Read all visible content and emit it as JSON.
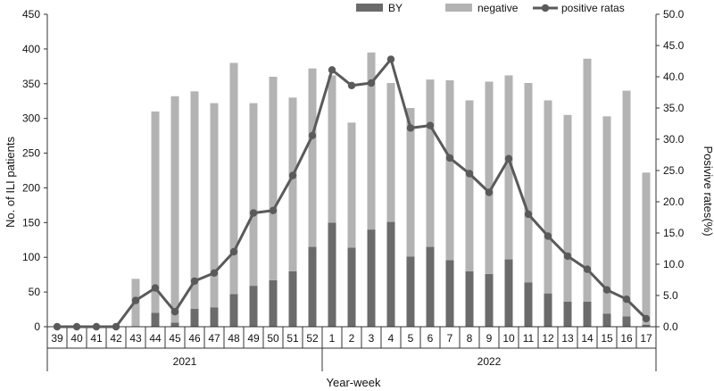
{
  "chart_data": {
    "type": "bar+line",
    "x_label": "Year-week",
    "y_left_label": "No. of ILI patients",
    "y_right_label": "Posivive rates(%)",
    "y_left_range": [
      0,
      450
    ],
    "y_left_ticks": [
      "0",
      "50",
      "100",
      "150",
      "200",
      "250",
      "300",
      "350",
      "400",
      "450"
    ],
    "y_right_range": [
      0,
      50
    ],
    "y_right_ticks": [
      "0.0",
      "5.0",
      "10.0",
      "15.0",
      "20.0",
      "25.0",
      "30.0",
      "35.0",
      "40.0",
      "45.0",
      "50.0"
    ],
    "weeks": [
      "39",
      "40",
      "41",
      "42",
      "43",
      "44",
      "45",
      "46",
      "47",
      "48",
      "49",
      "50",
      "51",
      "52",
      "1",
      "2",
      "3",
      "4",
      "5",
      "6",
      "7",
      "8",
      "9",
      "10",
      "11",
      "12",
      "13",
      "14",
      "15",
      "16",
      "17"
    ],
    "years": [
      {
        "label": "2021",
        "start": 0,
        "end": 13
      },
      {
        "label": "2022",
        "start": 14,
        "end": 30
      }
    ],
    "legend": [
      "BY",
      "negative",
      "positive ratas"
    ],
    "series": [
      {
        "name": "BY",
        "kind": "bar",
        "color": "#6b6b6b",
        "values": [
          0,
          0,
          0,
          0,
          0,
          20,
          6,
          26,
          28,
          47,
          59,
          67,
          80,
          115,
          150,
          114,
          140,
          151,
          101,
          115,
          96,
          80,
          76,
          97,
          64,
          48,
          36,
          36,
          19,
          15,
          3
        ]
      },
      {
        "name": "negative",
        "kind": "bar",
        "color": "#b3b3b3",
        "values": [
          0,
          0,
          0,
          0,
          69,
          290,
          326,
          313,
          294,
          333,
          263,
          293,
          250,
          257,
          212,
          180,
          255,
          200,
          214,
          241,
          259,
          246,
          277,
          265,
          287,
          278,
          269,
          350,
          284,
          325,
          219
        ]
      },
      {
        "name": "positive ratas",
        "kind": "line",
        "color": "#5a5a5a",
        "values": [
          0,
          0,
          0,
          0,
          4.2,
          6.2,
          2.4,
          7.3,
          8.6,
          12.0,
          18.2,
          18.6,
          24.2,
          30.6,
          41.1,
          38.6,
          39.0,
          42.8,
          31.8,
          32.2,
          27.0,
          24.5,
          21.5,
          26.9,
          18.0,
          14.5,
          11.3,
          9.2,
          5.9,
          4.4,
          1.3
        ]
      }
    ]
  }
}
